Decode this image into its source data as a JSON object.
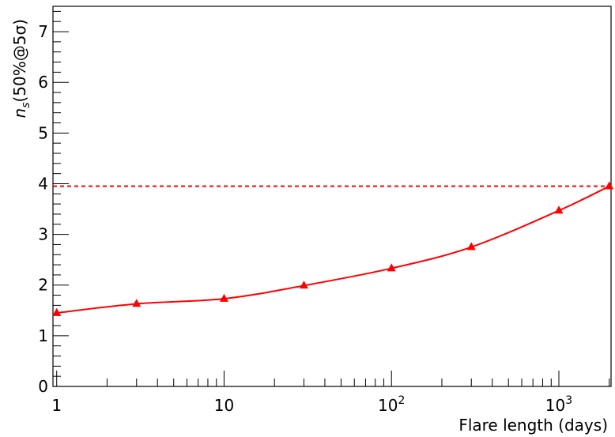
{
  "chart_data": {
    "type": "line",
    "xscale": "log",
    "xlabel": "Flare length (days)",
    "ylabel": "n_s(50%@5σ)",
    "ylabel_parts": {
      "n": "n",
      "sub": "s",
      "rest": "(50%@5σ)"
    },
    "xlim": [
      0.95,
      2050
    ],
    "ylim": [
      0,
      7.5
    ],
    "x_tick_labels": [
      {
        "value": 1,
        "text": "1"
      },
      {
        "value": 10,
        "text": "10"
      },
      {
        "value": 100,
        "base": "10",
        "exp": "2"
      },
      {
        "value": 1000,
        "base": "10",
        "exp": "3"
      }
    ],
    "y_ticks": [
      0,
      1,
      2,
      3,
      4,
      5,
      6,
      7
    ],
    "grid": false,
    "series": [
      {
        "color": "#ff0000",
        "marker": "triangle",
        "x": [
          1,
          3,
          10,
          30,
          100,
          300,
          1000,
          2000
        ],
        "y": [
          1.45,
          1.63,
          1.73,
          1.99,
          2.33,
          2.75,
          3.47,
          3.95
        ]
      }
    ],
    "reference_line": {
      "y": 3.95,
      "style": "dashed",
      "color": "#ff0000"
    }
  }
}
